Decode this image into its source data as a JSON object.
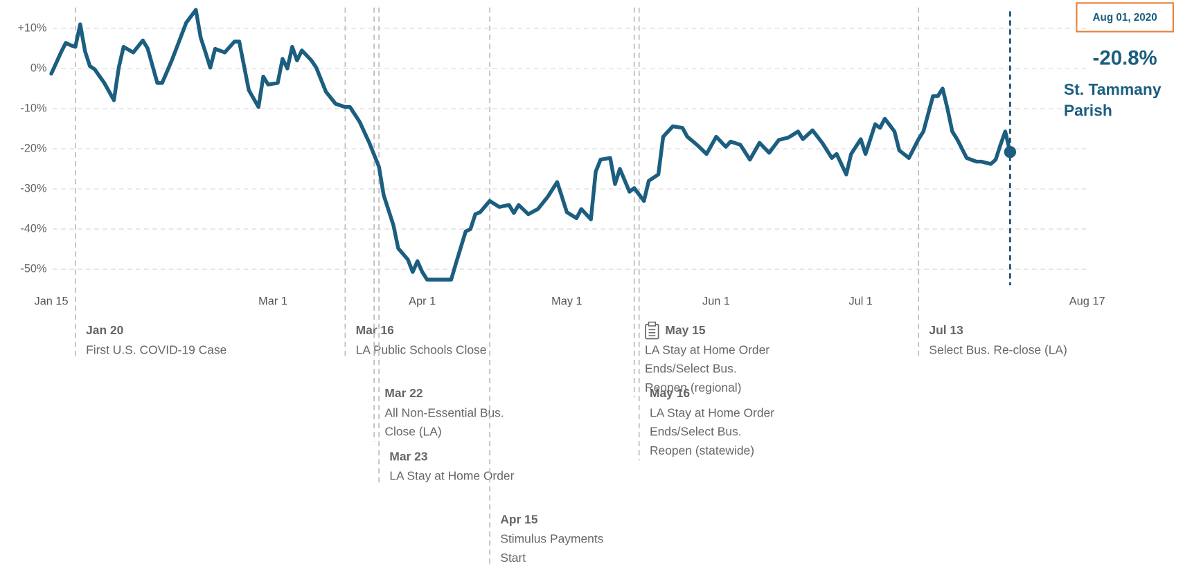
{
  "chart_data": {
    "type": "line",
    "xlim": [
      "2020-01-15",
      "2020-08-17"
    ],
    "xticks": [
      {
        "value": "2020-01-15",
        "label": "Jan 15"
      },
      {
        "value": "2020-03-01",
        "label": "Mar 1"
      },
      {
        "value": "2020-04-01",
        "label": "Apr 1"
      },
      {
        "value": "2020-05-01",
        "label": "May 1"
      },
      {
        "value": "2020-06-01",
        "label": "Jun 1"
      },
      {
        "value": "2020-07-01",
        "label": "Jul 1"
      },
      {
        "value": "2020-08-17",
        "label": "Aug 17"
      }
    ],
    "ylim": [
      -54,
      15
    ],
    "yticks": [
      {
        "value": 10,
        "label": "+10%"
      },
      {
        "value": 0,
        "label": "0%"
      },
      {
        "value": -10,
        "label": "-10%"
      },
      {
        "value": -20,
        "label": "-20%"
      },
      {
        "value": -30,
        "label": "-30%"
      },
      {
        "value": -40,
        "label": "-40%"
      },
      {
        "value": -50,
        "label": "-50%"
      }
    ],
    "grid": true,
    "series": [
      {
        "name": "St. Tammany Parish",
        "color": "#1b5e80",
        "x": [
          "2020-01-15",
          "2020-01-17",
          "2020-01-18",
          "2020-01-19",
          "2020-01-20",
          "2020-01-21",
          "2020-01-22",
          "2020-01-23",
          "2020-01-24",
          "2020-01-26",
          "2020-01-28",
          "2020-01-29",
          "2020-01-30",
          "2020-02-01",
          "2020-02-03",
          "2020-02-04",
          "2020-02-06",
          "2020-02-07",
          "2020-02-09",
          "2020-02-12",
          "2020-02-14",
          "2020-02-15",
          "2020-02-16",
          "2020-02-17",
          "2020-02-18",
          "2020-02-20",
          "2020-02-22",
          "2020-02-23",
          "2020-02-25",
          "2020-02-27",
          "2020-02-28",
          "2020-02-29",
          "2020-03-02",
          "2020-03-03",
          "2020-03-04",
          "2020-03-05",
          "2020-03-06",
          "2020-03-07",
          "2020-03-09",
          "2020-03-10",
          "2020-03-12",
          "2020-03-14",
          "2020-03-16",
          "2020-03-17",
          "2020-03-19",
          "2020-03-21",
          "2020-03-23",
          "2020-03-24",
          "2020-03-26",
          "2020-03-27",
          "2020-03-29",
          "2020-03-30",
          "2020-03-31",
          "2020-04-01",
          "2020-04-02",
          "2020-04-04",
          "2020-04-05",
          "2020-04-07",
          "2020-04-08",
          "2020-04-10",
          "2020-04-11",
          "2020-04-12",
          "2020-04-13",
          "2020-04-15",
          "2020-04-17",
          "2020-04-19",
          "2020-04-20",
          "2020-04-21",
          "2020-04-23",
          "2020-04-25",
          "2020-04-27",
          "2020-04-29",
          "2020-04-30",
          "2020-05-01",
          "2020-05-03",
          "2020-05-04",
          "2020-05-06",
          "2020-05-07",
          "2020-05-08",
          "2020-05-10",
          "2020-05-11",
          "2020-05-12",
          "2020-05-14",
          "2020-05-15",
          "2020-05-17",
          "2020-05-18",
          "2020-05-20",
          "2020-05-21",
          "2020-05-23",
          "2020-05-25",
          "2020-05-26",
          "2020-05-28",
          "2020-05-30",
          "2020-06-01",
          "2020-06-03",
          "2020-06-04",
          "2020-06-06",
          "2020-06-08",
          "2020-06-10",
          "2020-06-12",
          "2020-06-14",
          "2020-06-16",
          "2020-06-18",
          "2020-06-19",
          "2020-06-21",
          "2020-06-23",
          "2020-06-25",
          "2020-06-26",
          "2020-06-28",
          "2020-06-29",
          "2020-07-01",
          "2020-07-02",
          "2020-07-04",
          "2020-07-05",
          "2020-07-06",
          "2020-07-08",
          "2020-07-09",
          "2020-07-11",
          "2020-07-13",
          "2020-07-14",
          "2020-07-16",
          "2020-07-17",
          "2020-07-18",
          "2020-07-19",
          "2020-07-20",
          "2020-07-21",
          "2020-07-23",
          "2020-07-25",
          "2020-07-26",
          "2020-07-28",
          "2020-07-29",
          "2020-07-30",
          "2020-07-31",
          "2020-08-01"
        ],
        "values": [
          -1.3,
          4,
          6.4,
          5.8,
          5.4,
          11,
          4.3,
          0.6,
          -0.2,
          -3.6,
          -7.9,
          0.2,
          5.4,
          4,
          7,
          5,
          -3.6,
          -3.6,
          2,
          11.4,
          14.6,
          7.7,
          4,
          0.2,
          4.9,
          4,
          6.7,
          6.7,
          -5.4,
          -9.6,
          -2,
          -4,
          -3.6,
          2.4,
          0,
          5.4,
          2,
          4.5,
          2,
          0.2,
          -5.8,
          -8.8,
          -9.6,
          -9.6,
          -13.3,
          -18.5,
          -24.5,
          -31.6,
          -39,
          -44.8,
          -47.6,
          -50.7,
          -48,
          -50.7,
          -52.6,
          -52.6,
          -52.6,
          -52.6,
          -48.5,
          -40.6,
          -40,
          -36.3,
          -35.8,
          -33,
          -34.5,
          -34,
          -36,
          -34,
          -36.3,
          -35,
          -32,
          -28.3,
          -32,
          -35.8,
          -37.3,
          -35,
          -37.6,
          -25.7,
          -22.7,
          -22.3,
          -28.8,
          -25,
          -30.7,
          -29.8,
          -33,
          -28,
          -26.4,
          -17,
          -14.4,
          -14.8,
          -17,
          -19,
          -21.3,
          -17,
          -19.5,
          -18.2,
          -19,
          -22.7,
          -18.5,
          -21,
          -17.8,
          -17.2,
          -15.7,
          -17.6,
          -15.4,
          -18.5,
          -22.3,
          -21.3,
          -26.4,
          -21.3,
          -17.6,
          -21.3,
          -13.9,
          -14.8,
          -12.5,
          -15.7,
          -20.4,
          -22.3,
          -17.6,
          -15.7,
          -6.9,
          -6.9,
          -5,
          -10,
          -15.7,
          -17.6,
          -22.3,
          -23.2,
          -23.2,
          -23.8,
          -22.7,
          -19,
          -15.7,
          -20.8
        ]
      }
    ],
    "highlight": {
      "date_label": "Aug 01, 2020",
      "value_label": "-20.8%"
    },
    "events": [
      {
        "x": "2020-01-20",
        "date": "Jan 20",
        "text": [
          "First U.S. COVID-19 Case"
        ]
      },
      {
        "x": "2020-03-16",
        "date": "Mar 16",
        "text": [
          "LA Public Schools Close"
        ]
      },
      {
        "x": "2020-03-22",
        "date": "Mar 22",
        "text": [
          "All Non-Essential Bus.",
          "Close (LA)"
        ]
      },
      {
        "x": "2020-03-23",
        "date": "Mar 23",
        "text": [
          "LA Stay at Home Order"
        ]
      },
      {
        "x": "2020-04-15",
        "date": "Apr 15",
        "text": [
          "Stimulus Payments",
          "Start"
        ]
      },
      {
        "x": "2020-05-15",
        "date": "May 15",
        "text": [
          "LA Stay at Home Order",
          "Ends/Select Bus.",
          "Reopen (regional)"
        ]
      },
      {
        "x": "2020-05-16",
        "date": "May 16",
        "text": [
          "LA Stay at Home Order",
          "Ends/Select Bus.",
          "Reopen (statewide)"
        ]
      },
      {
        "x": "2020-07-13",
        "date": "Jul 13",
        "text": [
          "Select Bus. Re-close (LA)"
        ]
      }
    ]
  }
}
